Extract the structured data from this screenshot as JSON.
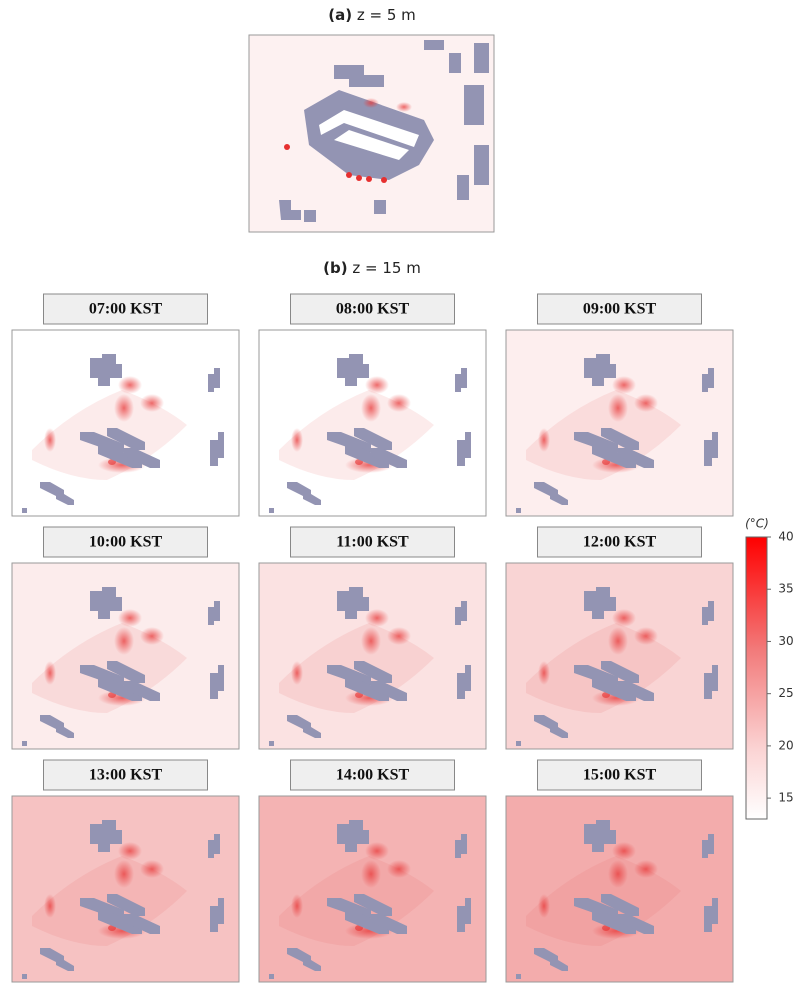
{
  "panel_a": {
    "label": "(a)",
    "title": "z = 5 m"
  },
  "panel_b": {
    "label": "(b)",
    "title": "z = 15 m",
    "times": [
      "07:00 KST",
      "08:00 KST",
      "09:00 KST",
      "10:00 KST",
      "11:00 KST",
      "12:00 KST",
      "13:00 KST",
      "14:00 KST",
      "15:00 KST"
    ]
  },
  "colorbar": {
    "unit": "(°C)",
    "range": [
      13,
      40
    ],
    "ticks": [
      15,
      20,
      25,
      30,
      35,
      40
    ]
  }
}
